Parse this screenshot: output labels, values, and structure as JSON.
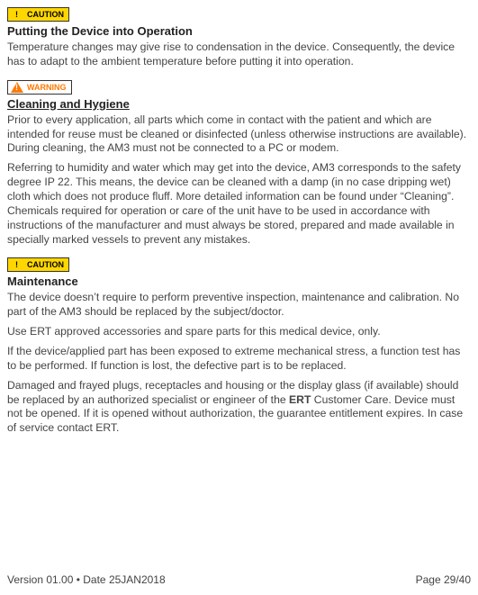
{
  "sections": [
    {
      "badge": {
        "label": "CAUTION",
        "bg": "#ffd700",
        "text_color": "#000000",
        "tri_color": "#ffd700"
      },
      "heading": "Putting the Device into Operation",
      "heading_underlined": false,
      "paragraphs": [
        "Temperature changes may give rise to condensation in the device. Consequently, the device has to adapt to the ambient temperature before putting it into operation."
      ]
    },
    {
      "badge": {
        "label": "WARNING",
        "bg": "#ffffff",
        "text_color": "#ff7a00",
        "tri_color": "#ff7a00"
      },
      "heading": "Cleaning and Hygiene",
      "heading_underlined": true,
      "paragraphs": [
        "Prior to every application, all parts which come in contact with the patient and which are intended for reuse must be cleaned or disinfected (unless otherwise instructions are available). During cleaning, the AM3 must not be connected to a PC or modem.",
        "Referring to humidity and water which may get into the device, AM3 corresponds to the safety degree IP 22. This means, the device can be cleaned with a damp (in no case dripping wet) cloth which does not produce fluff. More detailed information can be found under “Cleaning”. Chemicals required for operation or care of the unit have to be used in accordance with instructions of the manufacturer and must always be stored, prepared and made available in specially marked vessels to prevent any mistakes."
      ]
    },
    {
      "badge": {
        "label": "CAUTION",
        "bg": "#ffd700",
        "text_color": "#000000",
        "tri_color": "#ffd700"
      },
      "heading": "Maintenance",
      "heading_underlined": false,
      "paragraphs": [
        "The device doesn’t require to perform preventive inspection, maintenance and calibration. No part of the AM3 should be replaced by the subject/doctor.",
        "Use ERT approved accessories and spare parts for this medical device, only.",
        "If the device/applied part has been exposed to extreme mechanical stress, a function test has to be performed. If function is lost, the defective part is to be replaced."
      ],
      "rich_paragraph": {
        "pre": "Damaged and frayed plugs, receptacles and housing or the display glass (if available) should be replaced by an authorized specialist or engineer of the ",
        "bold": "ERT",
        "post": " Customer Care. Device must not be opened. If it is opened without authorization, the guarantee entitlement expires. In case of service contact ERT."
      }
    }
  ],
  "footer": {
    "left": "Version 01.00 • Date 25JAN2018",
    "right": "Page 29/40"
  }
}
